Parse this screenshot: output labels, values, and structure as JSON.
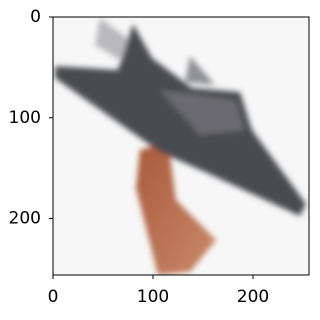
{
  "chart_data": {
    "type": "image",
    "xlim": [
      0,
      256
    ],
    "ylim": [
      256,
      0
    ],
    "xticks": [
      0,
      100,
      200
    ],
    "yticks": [
      0,
      100,
      200
    ]
  }
}
